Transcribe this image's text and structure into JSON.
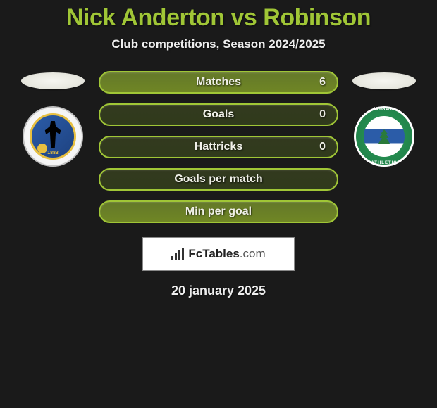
{
  "title": "Nick Anderton vs Robinson",
  "subtitle": "Club competitions, Season 2024/2025",
  "left_club": {
    "name": "bristol-rovers",
    "year": "1883"
  },
  "right_club": {
    "name": "wigan-athletic",
    "arc_top": "WIGAN",
    "arc_bottom": "ATHLETIC"
  },
  "stats": [
    {
      "label": "Matches",
      "value": "6",
      "highlight": true
    },
    {
      "label": "Goals",
      "value": "0",
      "highlight": false
    },
    {
      "label": "Hattricks",
      "value": "0",
      "highlight": false
    },
    {
      "label": "Goals per match",
      "value": "",
      "highlight": false
    },
    {
      "label": "Min per goal",
      "value": "",
      "highlight": true
    }
  ],
  "brand": {
    "name": "FcTables",
    "domain": ".com"
  },
  "date": "20 january 2025",
  "colors": {
    "accent": "#a0c636",
    "background": "#1a1a1a",
    "pill_border": "#a0c636"
  }
}
